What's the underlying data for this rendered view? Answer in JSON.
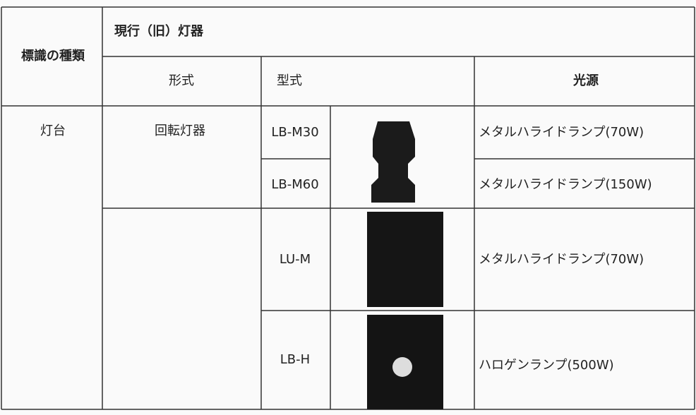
{
  "table": {
    "header": {
      "sign_type": "標識の種類",
      "group": "現行（旧）灯器",
      "columns": [
        "形式",
        "型式",
        "光源"
      ]
    },
    "category": "灯台",
    "groups": [
      {
        "form": "回転灯器",
        "items": [
          {
            "model": "LB-M30",
            "light_source": "メタルハライドランプ(70W)"
          },
          {
            "model": "LB-M60",
            "light_source": "メタルハライドランプ(150W)"
          }
        ]
      },
      {
        "items": [
          {
            "model": "LU-M",
            "light_source": "メタルハライドランプ(70W)"
          },
          {
            "model": "LB-H",
            "light_source": "ハロゲンランプ(500W)"
          }
        ]
      }
    ]
  }
}
